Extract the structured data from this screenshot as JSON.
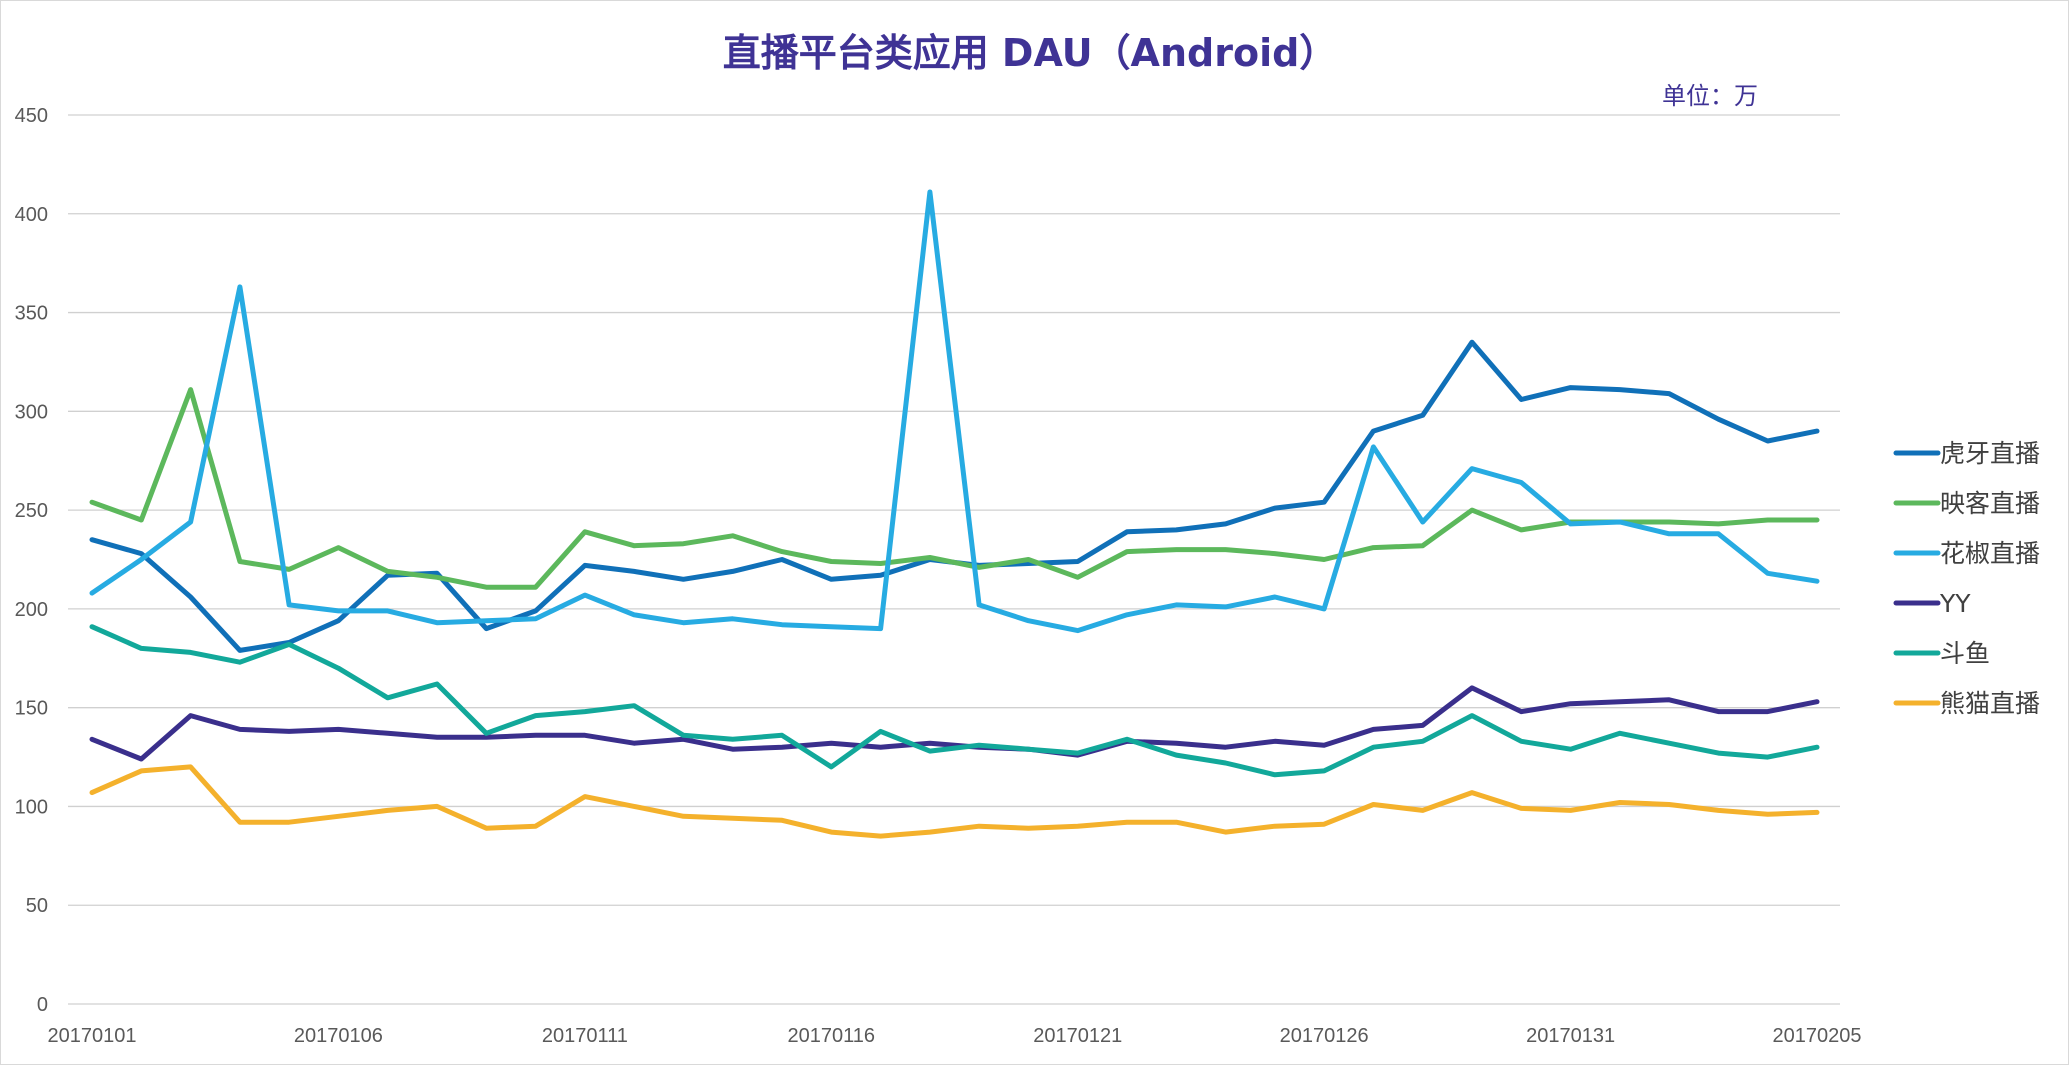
{
  "chart_data": {
    "type": "line",
    "title": "直播平台类应用 DAU（Android）",
    "unit_label": "单位：万",
    "xlabel": "",
    "ylabel": "",
    "ylim": [
      0,
      450
    ],
    "yticks": [
      0,
      50,
      100,
      150,
      200,
      250,
      300,
      350,
      400,
      450
    ],
    "grid": true,
    "legend_position": "right",
    "x": [
      "20170101",
      "20170102",
      "20170103",
      "20170104",
      "20170105",
      "20170106",
      "20170107",
      "20170108",
      "20170109",
      "20170110",
      "20170111",
      "20170112",
      "20170113",
      "20170114",
      "20170115",
      "20170116",
      "20170117",
      "20170118",
      "20170119",
      "20170120",
      "20170121",
      "20170122",
      "20170123",
      "20170124",
      "20170125",
      "20170126",
      "20170127",
      "20170128",
      "20170129",
      "20170130",
      "20170131",
      "20170201",
      "20170202",
      "20170203",
      "20170204",
      "20170205"
    ],
    "xtick_labels": [
      "20170101",
      "20170106",
      "20170111",
      "20170116",
      "20170121",
      "20170126",
      "20170131",
      "20170205"
    ],
    "series": [
      {
        "name": "虎牙直播",
        "color": "#1070b8",
        "values": [
          235,
          228,
          206,
          179,
          183,
          194,
          217,
          218,
          190,
          199,
          222,
          219,
          215,
          219,
          225,
          215,
          217,
          225,
          222,
          223,
          224,
          239,
          240,
          243,
          251,
          254,
          290,
          298,
          335,
          306,
          312,
          311,
          309,
          296,
          285,
          290
        ]
      },
      {
        "name": "映客直播",
        "color": "#5cb85c",
        "values": [
          254,
          245,
          311,
          224,
          220,
          231,
          219,
          216,
          211,
          211,
          239,
          232,
          233,
          237,
          229,
          224,
          223,
          226,
          221,
          225,
          216,
          229,
          230,
          230,
          228,
          225,
          231,
          232,
          250,
          240,
          244,
          244,
          244,
          243,
          245,
          245
        ]
      },
      {
        "name": "花椒直播",
        "color": "#27abe2",
        "values": [
          208,
          225,
          244,
          363,
          202,
          199,
          199,
          193,
          194,
          195,
          207,
          197,
          193,
          195,
          192,
          191,
          190,
          411,
          202,
          194,
          189,
          197,
          202,
          201,
          206,
          200,
          282,
          244,
          271,
          264,
          243,
          244,
          238,
          238,
          218,
          214
        ]
      },
      {
        "name": "YY",
        "color": "#3a2f8c",
        "values": [
          134,
          124,
          146,
          139,
          138,
          139,
          137,
          135,
          135,
          136,
          136,
          132,
          134,
          129,
          130,
          132,
          130,
          132,
          130,
          129,
          126,
          133,
          132,
          130,
          133,
          131,
          139,
          141,
          160,
          148,
          152,
          153,
          154,
          148,
          148,
          153
        ]
      },
      {
        "name": "斗鱼",
        "color": "#12a89a",
        "values": [
          191,
          180,
          178,
          173,
          182,
          170,
          155,
          162,
          137,
          146,
          148,
          151,
          136,
          134,
          136,
          120,
          138,
          128,
          131,
          129,
          127,
          134,
          126,
          122,
          116,
          118,
          130,
          133,
          146,
          133,
          129,
          137,
          132,
          127,
          125,
          130
        ]
      },
      {
        "name": "熊猫直播",
        "color": "#f4b12c",
        "values": [
          107,
          118,
          120,
          92,
          92,
          95,
          98,
          100,
          89,
          90,
          105,
          100,
          95,
          94,
          93,
          87,
          85,
          87,
          90,
          89,
          90,
          92,
          92,
          87,
          90,
          91,
          101,
          98,
          107,
          99,
          98,
          102,
          101,
          98,
          96,
          97
        ]
      }
    ]
  }
}
